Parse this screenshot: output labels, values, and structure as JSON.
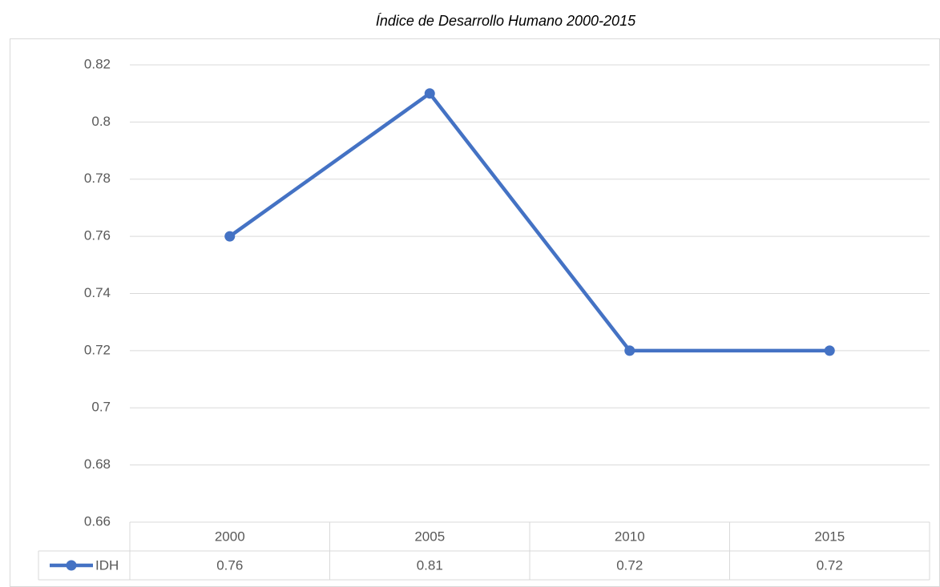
{
  "chart_data": {
    "type": "line",
    "title": "Índice de Desarrollo Humano 2000-2015",
    "categories": [
      "2000",
      "2005",
      "2010",
      "2015"
    ],
    "series": [
      {
        "name": "IDH",
        "color": "#4472c4",
        "values": [
          0.76,
          0.81,
          0.72,
          0.72
        ]
      }
    ],
    "ylim": [
      0.66,
      0.82
    ],
    "yticks": [
      0.66,
      0.68,
      0.7,
      0.72,
      0.74,
      0.76,
      0.78,
      0.8,
      0.82
    ],
    "grid": true,
    "legend": "data-table"
  }
}
